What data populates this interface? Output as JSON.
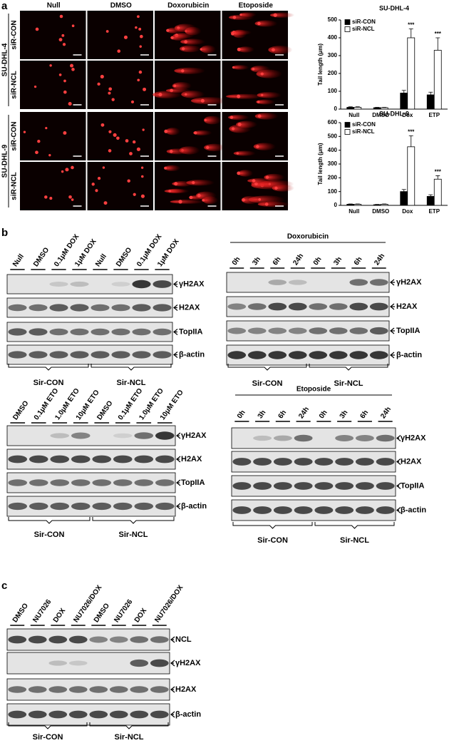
{
  "panel_a": {
    "label": "a",
    "columns": [
      "Null",
      "DMSO",
      "Doxorubicin",
      "Etoposide"
    ],
    "cell_lines": [
      {
        "name": "SU-DHL-4",
        "rows": [
          "siR-CON",
          "siR-NCL"
        ]
      },
      {
        "name": "SU-DHL-9",
        "rows": [
          "siR-CON",
          "siR-NCL"
        ]
      }
    ]
  },
  "chart_data": [
    {
      "type": "bar",
      "title": "SU-DHL-4",
      "y_label": "Tail length (μm)",
      "categories": [
        "Null",
        "DMSO",
        "Dox",
        "ETP"
      ],
      "series": [
        {
          "name": "siR-CON",
          "color": "#000000",
          "values": [
            10,
            8,
            90,
            80
          ],
          "errors": [
            3,
            2,
            15,
            15
          ]
        },
        {
          "name": "siR-NCL",
          "color": "#ffffff",
          "values": [
            10,
            8,
            400,
            330
          ],
          "errors": [
            3,
            2,
            50,
            70
          ]
        }
      ],
      "ylim": [
        0,
        500
      ],
      "yticks": [
        0,
        100,
        200,
        300,
        400,
        500
      ],
      "legend": "upper-left",
      "annotations": [
        {
          "text": "***",
          "category": "Dox"
        },
        {
          "text": "***",
          "category": "ETP"
        }
      ]
    },
    {
      "type": "bar",
      "title": "SU-DHL-9",
      "y_label": "Tail length (μm)",
      "categories": [
        "Null",
        "DMSO",
        "Dox",
        "ETP"
      ],
      "series": [
        {
          "name": "siR-CON",
          "color": "#000000",
          "values": [
            8,
            5,
            100,
            65
          ],
          "errors": [
            2,
            2,
            15,
            12
          ]
        },
        {
          "name": "siR-NCL",
          "color": "#ffffff",
          "values": [
            8,
            8,
            425,
            190
          ],
          "errors": [
            2,
            2,
            80,
            25
          ]
        }
      ],
      "ylim": [
        0,
        600
      ],
      "yticks": [
        0,
        100,
        200,
        300,
        400,
        500,
        600
      ],
      "legend": "upper-left",
      "annotations": [
        {
          "text": "***",
          "category": "Dox"
        },
        {
          "text": "***",
          "category": "ETP"
        }
      ]
    }
  ],
  "panel_b": {
    "label": "b",
    "blots": [
      {
        "lanes": [
          "Null",
          "DMSO",
          "0.1μM DOX",
          "1μM DOX",
          "Null",
          "DMSO",
          "0.1μM DOX",
          "1μM DOX"
        ],
        "rows": [
          "γH2AX",
          "H2AX",
          "TopIIA",
          "β-actin"
        ],
        "groups": [
          "Sir-CON",
          "Sir-NCL"
        ]
      },
      {
        "title": "Doxorubicin",
        "lanes": [
          "0h",
          "3h",
          "6h",
          "24h",
          "0h",
          "3h",
          "6h",
          "24h"
        ],
        "rows": [
          "γH2AX",
          "H2AX",
          "TopIIA",
          "β-actin"
        ],
        "groups": [
          "Sir-CON",
          "Sir-NCL"
        ]
      },
      {
        "lanes": [
          "DMSO",
          "0.1μM ETO",
          "1.0μM ETO",
          "10μM ETO",
          "DMSO",
          "0.1μM ETO",
          "1.0μM ETO",
          "10μM ETO"
        ],
        "rows": [
          "γH2AX",
          "H2AX",
          "TopIIA",
          "β-actin"
        ],
        "groups": [
          "Sir-CON",
          "Sir-NCL"
        ]
      },
      {
        "title": "Etoposide",
        "lanes": [
          "0h",
          "3h",
          "6h",
          "24h",
          "0h",
          "3h",
          "6h",
          "24h"
        ],
        "rows": [
          "γH2AX",
          "H2AX",
          "TopIIA",
          "β-actin"
        ],
        "groups": [
          "Sir-CON",
          "Sir-NCL"
        ]
      }
    ]
  },
  "panel_c": {
    "label": "c",
    "blot": {
      "lanes": [
        "DMSO",
        "NU7026",
        "DOX",
        "NU7026/DOX",
        "DMSO",
        "NU7026",
        "DOX",
        "NU7026/DOX"
      ],
      "rows": [
        "NCL",
        "γH2AX",
        "H2AX",
        "β-actin"
      ],
      "groups": [
        "Sir-CON",
        "Sir-NCL"
      ]
    }
  }
}
